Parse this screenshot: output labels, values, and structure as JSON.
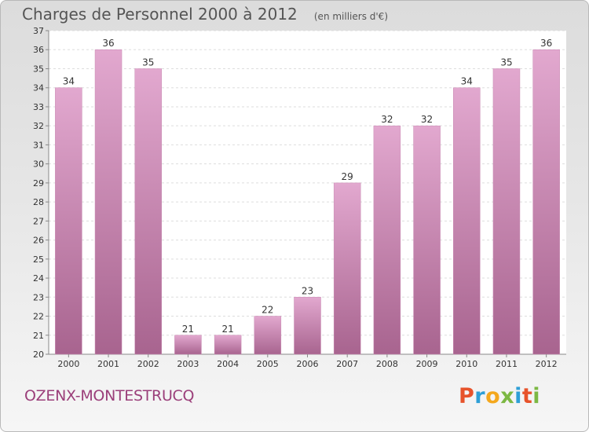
{
  "header": {
    "title": "Charges de Personnel 2000 à 2012",
    "unit_note": "(en milliers d'€)"
  },
  "footer": {
    "commune": "OZENX-MONTESTRUCQ",
    "logo_text": "Proxiti",
    "logo_letters": [
      "P",
      "r",
      "o",
      "x",
      "i",
      "t",
      "i"
    ]
  },
  "colors": {
    "bar_top": "#e2a8cf",
    "bar_bottom": "#a8648f",
    "plot_background": "#ffffff",
    "grid": "#dddddd",
    "commune_text": "#9b3f7a"
  },
  "chart_data": {
    "type": "bar",
    "title": "Charges de Personnel 2000 à 2012",
    "subtitle": "(en milliers d'€)",
    "categories": [
      "2000",
      "2001",
      "2002",
      "2003",
      "2004",
      "2005",
      "2006",
      "2007",
      "2008",
      "2009",
      "2010",
      "2011",
      "2012"
    ],
    "values": [
      34,
      36,
      35,
      21,
      21,
      22,
      23,
      29,
      32,
      32,
      34,
      35,
      36
    ],
    "data_labels": [
      "34",
      "36",
      "35",
      "21",
      "21",
      "22",
      "23",
      "29",
      "32",
      "32",
      "34",
      "35",
      "36"
    ],
    "y_ticks": [
      "20",
      "21",
      "22",
      "23",
      "24",
      "25",
      "26",
      "27",
      "28",
      "29",
      "30",
      "31",
      "32",
      "33",
      "34",
      "35",
      "36",
      "37"
    ],
    "ylim": [
      20,
      37
    ],
    "xlabel": "",
    "ylabel": "",
    "grid": true,
    "legend": "none"
  }
}
